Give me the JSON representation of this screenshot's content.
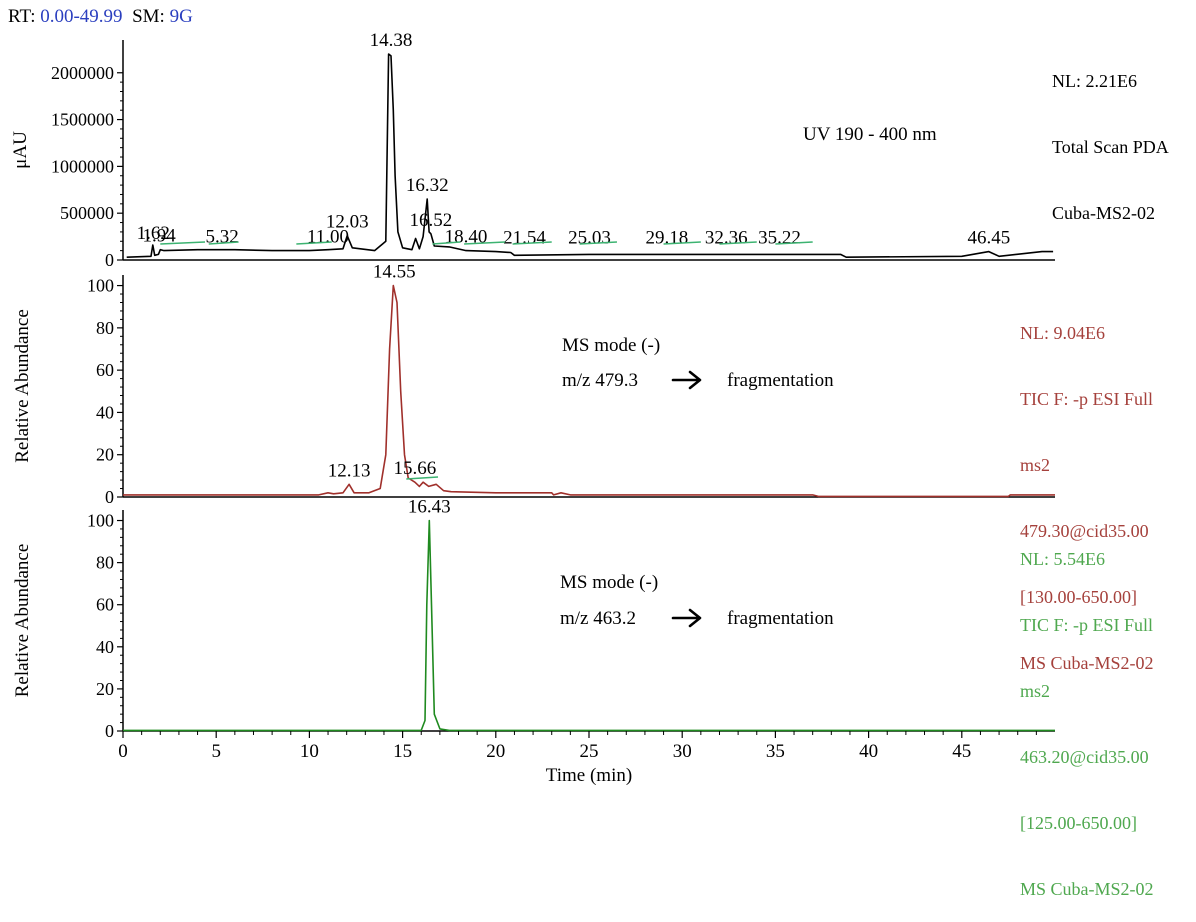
{
  "header": {
    "rt_label": "RT:",
    "rt_value": "0.00-49.99",
    "sm_label": "SM:",
    "sm_value": "9G"
  },
  "colors": {
    "uv": "#000000",
    "ms1": "#a0302b",
    "ms2": "#1f8a1f",
    "baseline": "#3cb371",
    "header_value": "#2b3fbf"
  },
  "chart_data": [
    {
      "type": "line",
      "title": "",
      "ylabel": "μAU",
      "xlabel": "",
      "xlim": [
        0,
        50
      ],
      "ylim": [
        0,
        2350000
      ],
      "yticks": [
        0,
        500000,
        1000000,
        1500000,
        2000000
      ],
      "ytick_labels": [
        "0",
        "500000",
        "1000000",
        "1500000",
        "2000000"
      ],
      "info": [
        "NL: 2.21E6",
        "Total Scan PDA",
        "Cuba-MS2-02"
      ],
      "annotation": "UV 190 - 400 nm",
      "peaks": [
        {
          "label": "1.62",
          "x": 1.62,
          "y": 140000
        },
        {
          "label": "1.94",
          "x": 1.94,
          "y": 110000
        },
        {
          "label": "5.32",
          "x": 5.32,
          "y": 100000
        },
        {
          "label": "11.00",
          "x": 11.0,
          "y": 100000
        },
        {
          "label": "12.03",
          "x": 12.03,
          "y": 260000
        },
        {
          "label": "14.38",
          "x": 14.38,
          "y": 2200000
        },
        {
          "label": "16.32",
          "x": 16.32,
          "y": 650000
        },
        {
          "label": "16.52",
          "x": 16.52,
          "y": 280000
        },
        {
          "label": "18.40",
          "x": 18.4,
          "y": 100000
        },
        {
          "label": "21.54",
          "x": 21.54,
          "y": 90000
        },
        {
          "label": "25.03",
          "x": 25.03,
          "y": 90000
        },
        {
          "label": "29.18",
          "x": 29.18,
          "y": 90000
        },
        {
          "label": "32.36",
          "x": 32.36,
          "y": 90000
        },
        {
          "label": "35.22",
          "x": 35.22,
          "y": 90000
        },
        {
          "label": "46.45",
          "x": 46.45,
          "y": 90000
        }
      ],
      "series": [
        {
          "points": [
            [
              0.2,
              30000
            ],
            [
              1.5,
              40000
            ],
            [
              1.6,
              160000
            ],
            [
              1.7,
              50000
            ],
            [
              1.9,
              60000
            ],
            [
              2.0,
              110000
            ],
            [
              2.2,
              100000
            ],
            [
              4,
              110000
            ],
            [
              6,
              110000
            ],
            [
              8,
              100000
            ],
            [
              10,
              100000
            ],
            [
              11,
              110000
            ],
            [
              11.8,
              120000
            ],
            [
              12.03,
              260000
            ],
            [
              12.3,
              130000
            ],
            [
              13.5,
              100000
            ],
            [
              14.1,
              200000
            ],
            [
              14.25,
              2200000
            ],
            [
              14.38,
              2180000
            ],
            [
              14.5,
              1600000
            ],
            [
              14.6,
              900000
            ],
            [
              14.75,
              300000
            ],
            [
              15.0,
              130000
            ],
            [
              15.5,
              110000
            ],
            [
              15.7,
              230000
            ],
            [
              15.9,
              120000
            ],
            [
              16.1,
              250000
            ],
            [
              16.32,
              650000
            ],
            [
              16.42,
              300000
            ],
            [
              16.52,
              280000
            ],
            [
              16.7,
              150000
            ],
            [
              17.5,
              140000
            ],
            [
              18.4,
              100000
            ],
            [
              20,
              90000
            ],
            [
              20.8,
              80000
            ],
            [
              21.0,
              50000
            ],
            [
              25,
              60000
            ],
            [
              30,
              60000
            ],
            [
              35,
              60000
            ],
            [
              38.5,
              60000
            ],
            [
              38.8,
              30000
            ],
            [
              45,
              40000
            ],
            [
              46.45,
              90000
            ],
            [
              47,
              40000
            ],
            [
              49.3,
              90000
            ],
            [
              49.9,
              90000
            ]
          ]
        }
      ]
    },
    {
      "type": "line",
      "title": "",
      "ylabel": "Relative Abundance",
      "xlabel": "",
      "xlim": [
        0,
        50
      ],
      "ylim": [
        0,
        105
      ],
      "yticks": [
        0,
        20,
        40,
        60,
        80,
        100
      ],
      "ytick_labels": [
        "0",
        "20",
        "40",
        "60",
        "80",
        "100"
      ],
      "info": [
        "NL: 9.04E6",
        "TIC F: -p ESI Full",
        "ms2",
        "479.30@cid35.00",
        "[130.00-650.00]",
        "MS Cuba-MS2-02"
      ],
      "annotation_line1": "MS mode (-)",
      "annotation_mz": "m/z 479.3",
      "annotation_result": "fragmentation",
      "peaks": [
        {
          "label": "14.55",
          "x": 14.55,
          "y": 100
        },
        {
          "label": "12.13",
          "x": 12.13,
          "y": 6
        },
        {
          "label": "15.66",
          "x": 15.66,
          "y": 7
        }
      ],
      "series": [
        {
          "points": [
            [
              0,
              1
            ],
            [
              10.5,
              1
            ],
            [
              11.0,
              2
            ],
            [
              11.3,
              1.5
            ],
            [
              11.8,
              2
            ],
            [
              12.13,
              6
            ],
            [
              12.4,
              2
            ],
            [
              13.2,
              2
            ],
            [
              13.8,
              4
            ],
            [
              14.1,
              20
            ],
            [
              14.3,
              70
            ],
            [
              14.5,
              100
            ],
            [
              14.7,
              92
            ],
            [
              14.9,
              50
            ],
            [
              15.1,
              20
            ],
            [
              15.3,
              9
            ],
            [
              15.66,
              7
            ],
            [
              15.9,
              5
            ],
            [
              16.1,
              7
            ],
            [
              16.4,
              5
            ],
            [
              16.8,
              6
            ],
            [
              17.2,
              3
            ],
            [
              17.6,
              2.5
            ],
            [
              20,
              2
            ],
            [
              23,
              2
            ],
            [
              23.1,
              1
            ],
            [
              23.5,
              2
            ],
            [
              24,
              1
            ],
            [
              30,
              1
            ],
            [
              37,
              1
            ],
            [
              37.3,
              0.3
            ],
            [
              47.5,
              0.3
            ],
            [
              47.6,
              1
            ],
            [
              50,
              1
            ]
          ]
        }
      ]
    },
    {
      "type": "line",
      "title": "",
      "ylabel": "Relative Abundance",
      "xlabel": "Time (min)",
      "xlim": [
        0,
        50
      ],
      "ylim": [
        0,
        105
      ],
      "yticks": [
        0,
        20,
        40,
        60,
        80,
        100
      ],
      "ytick_labels": [
        "0",
        "20",
        "40",
        "60",
        "80",
        "100"
      ],
      "xticks": [
        0,
        5,
        10,
        15,
        20,
        25,
        30,
        35,
        40,
        45
      ],
      "xtick_labels": [
        "0",
        "5",
        "10",
        "15",
        "20",
        "25",
        "30",
        "35",
        "40",
        "45"
      ],
      "info": [
        "NL: 5.54E6",
        "TIC F: -p ESI Full",
        "ms2",
        "463.20@cid35.00",
        "[125.00-650.00]",
        "MS Cuba-MS2-02"
      ],
      "annotation_line1": "MS mode (-)",
      "annotation_mz": "m/z 463.2",
      "annotation_result": "fragmentation",
      "peaks": [
        {
          "label": "16.43",
          "x": 16.43,
          "y": 100
        }
      ],
      "series": [
        {
          "points": [
            [
              0,
              0.3
            ],
            [
              16.0,
              0.3
            ],
            [
              16.2,
              5
            ],
            [
              16.3,
              60
            ],
            [
              16.43,
              100
            ],
            [
              16.55,
              60
            ],
            [
              16.7,
              8
            ],
            [
              17.0,
              1
            ],
            [
              17.5,
              0.3
            ],
            [
              50,
              0.3
            ]
          ]
        }
      ]
    }
  ]
}
